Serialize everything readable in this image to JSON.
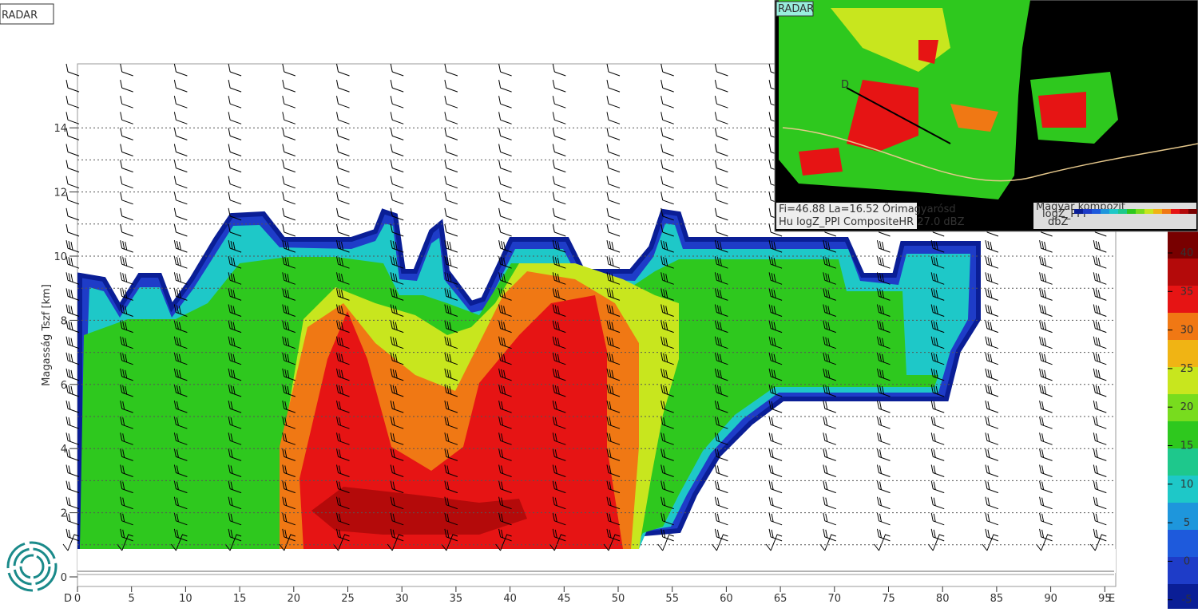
{
  "main_panel": {
    "label": "RADAR",
    "y_axis": {
      "label": "Magasság Tszf [km]",
      "ticks": [
        "0",
        "2",
        "4",
        "6",
        "8",
        "10",
        "12",
        "14"
      ]
    },
    "x_axis": {
      "start": "D",
      "end": "E",
      "ticks": [
        "0",
        "5",
        "10",
        "15",
        "20",
        "25",
        "30",
        "35",
        "40",
        "45",
        "50",
        "55",
        "60",
        "65",
        "70",
        "75",
        "80",
        "85",
        "90",
        "95"
      ]
    }
  },
  "colorbar": {
    "ticks": [
      "40",
      "35",
      "30",
      "25",
      "20",
      "15",
      "10",
      "5",
      "0",
      "-5"
    ]
  },
  "inset": {
    "label": "RADAR",
    "point": "D",
    "info_line_1": "Fi=46.88 La=16.52 Őrimagyarósd",
    "info_line_2": "Hu logZ_PPI CompositeHR   27.0 dBZ",
    "legend_title": "Magyar kompozit",
    "legend_sub": "logZ_PPI",
    "legend_unit": "dbZ"
  }
}
